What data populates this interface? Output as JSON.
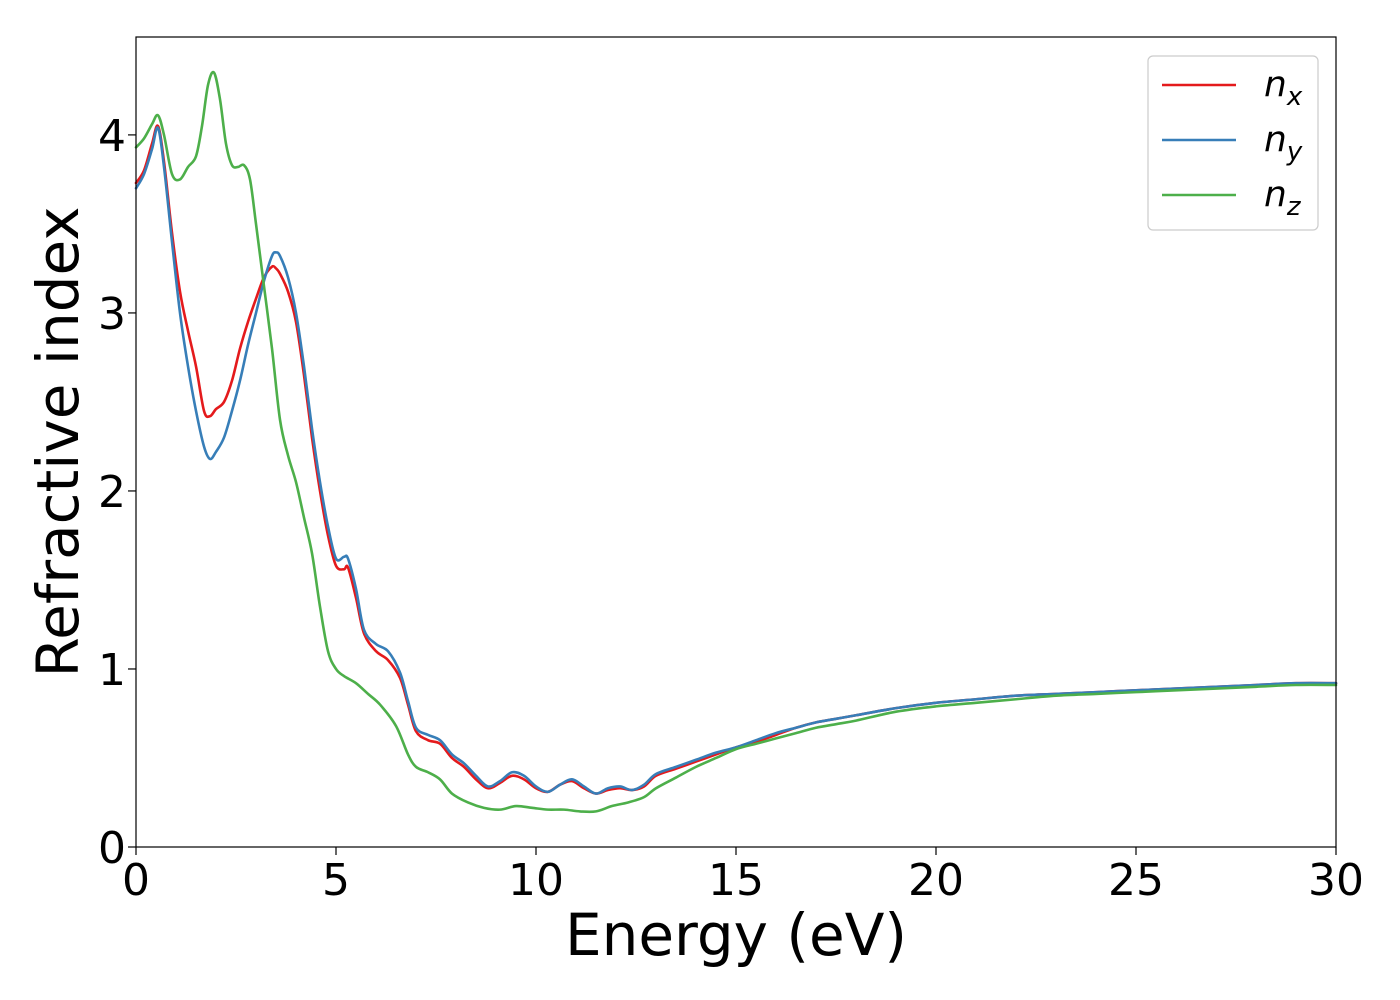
{
  "chart_data": {
    "type": "line",
    "title": "",
    "xlabel": "Energy (eV)",
    "ylabel": "Refractive index",
    "xlim": [
      0,
      30
    ],
    "ylim": [
      0,
      4.55
    ],
    "xticks": [
      0,
      5,
      10,
      15,
      20,
      25,
      30
    ],
    "yticks": [
      0,
      1,
      2,
      3,
      4
    ],
    "xtick_labels": [
      "0",
      "5",
      "10",
      "15",
      "20",
      "25",
      "30"
    ],
    "ytick_labels": [
      "0",
      "1",
      "2",
      "3",
      "4"
    ],
    "grid": false,
    "legend_position": "top-right",
    "series": [
      {
        "name": "n_x",
        "label_main": "n",
        "label_sub": "x",
        "color": "#e41a1c",
        "x": [
          0,
          0.2,
          0.4,
          0.55,
          0.7,
          0.9,
          1.1,
          1.3,
          1.5,
          1.7,
          1.85,
          2.0,
          2.2,
          2.4,
          2.6,
          2.8,
          3.0,
          3.2,
          3.4,
          3.5,
          3.6,
          3.8,
          4.0,
          4.2,
          4.4,
          4.6,
          4.8,
          5.0,
          5.2,
          5.3,
          5.5,
          5.7,
          6.0,
          6.3,
          6.6,
          6.8,
          7.0,
          7.3,
          7.6,
          7.9,
          8.2,
          8.5,
          8.8,
          9.1,
          9.4,
          9.7,
          10.0,
          10.3,
          10.6,
          10.9,
          11.2,
          11.5,
          11.8,
          12.1,
          12.4,
          12.7,
          13.0,
          13.5,
          14.0,
          14.5,
          15.0,
          15.5,
          16.0,
          16.5,
          17.0,
          17.5,
          18.0,
          19.0,
          20.0,
          21.0,
          22.0,
          23.0,
          24.0,
          25.0,
          26.0,
          27.0,
          28.0,
          29.0,
          30.0
        ],
        "y": [
          3.73,
          3.8,
          3.95,
          4.05,
          3.85,
          3.45,
          3.12,
          2.9,
          2.7,
          2.45,
          2.42,
          2.46,
          2.5,
          2.62,
          2.8,
          2.95,
          3.08,
          3.2,
          3.26,
          3.25,
          3.22,
          3.12,
          2.95,
          2.65,
          2.3,
          2.0,
          1.75,
          1.58,
          1.56,
          1.57,
          1.4,
          1.2,
          1.1,
          1.05,
          0.95,
          0.8,
          0.65,
          0.6,
          0.58,
          0.5,
          0.45,
          0.38,
          0.33,
          0.36,
          0.4,
          0.38,
          0.33,
          0.31,
          0.35,
          0.37,
          0.33,
          0.3,
          0.32,
          0.33,
          0.32,
          0.34,
          0.4,
          0.44,
          0.48,
          0.52,
          0.56,
          0.59,
          0.63,
          0.67,
          0.7,
          0.72,
          0.74,
          0.78,
          0.81,
          0.83,
          0.85,
          0.86,
          0.87,
          0.88,
          0.89,
          0.9,
          0.91,
          0.92,
          0.92
        ]
      },
      {
        "name": "n_y",
        "label_main": "n",
        "label_sub": "y",
        "color": "#377eb8",
        "x": [
          0,
          0.2,
          0.4,
          0.55,
          0.7,
          0.9,
          1.1,
          1.3,
          1.5,
          1.7,
          1.85,
          2.0,
          2.2,
          2.4,
          2.6,
          2.8,
          3.0,
          3.2,
          3.4,
          3.5,
          3.6,
          3.8,
          4.0,
          4.2,
          4.4,
          4.6,
          4.8,
          5.0,
          5.2,
          5.3,
          5.5,
          5.7,
          6.0,
          6.3,
          6.6,
          6.8,
          7.0,
          7.3,
          7.6,
          7.9,
          8.2,
          8.5,
          8.8,
          9.1,
          9.4,
          9.7,
          10.0,
          10.3,
          10.6,
          10.9,
          11.2,
          11.5,
          11.8,
          12.1,
          12.4,
          12.7,
          13.0,
          13.5,
          14.0,
          14.5,
          15.0,
          15.5,
          16.0,
          16.5,
          17.0,
          17.5,
          18.0,
          19.0,
          20.0,
          21.0,
          22.0,
          23.0,
          24.0,
          25.0,
          26.0,
          27.0,
          28.0,
          29.0,
          30.0
        ],
        "y": [
          3.7,
          3.78,
          3.92,
          4.04,
          3.82,
          3.4,
          3.0,
          2.7,
          2.45,
          2.25,
          2.18,
          2.22,
          2.3,
          2.45,
          2.62,
          2.82,
          3.0,
          3.18,
          3.32,
          3.34,
          3.32,
          3.2,
          3.0,
          2.7,
          2.35,
          2.05,
          1.8,
          1.62,
          1.63,
          1.62,
          1.45,
          1.22,
          1.14,
          1.1,
          0.98,
          0.82,
          0.67,
          0.63,
          0.6,
          0.52,
          0.47,
          0.4,
          0.34,
          0.37,
          0.42,
          0.4,
          0.34,
          0.31,
          0.35,
          0.38,
          0.34,
          0.3,
          0.33,
          0.34,
          0.32,
          0.35,
          0.41,
          0.45,
          0.49,
          0.53,
          0.56,
          0.6,
          0.64,
          0.67,
          0.7,
          0.72,
          0.74,
          0.78,
          0.81,
          0.83,
          0.85,
          0.86,
          0.87,
          0.88,
          0.89,
          0.9,
          0.91,
          0.92,
          0.92
        ]
      },
      {
        "name": "n_z",
        "label_main": "n",
        "label_sub": "z",
        "color": "#4daf4a",
        "x": [
          0,
          0.2,
          0.4,
          0.55,
          0.7,
          0.9,
          1.1,
          1.3,
          1.5,
          1.65,
          1.8,
          1.95,
          2.1,
          2.25,
          2.4,
          2.55,
          2.7,
          2.85,
          3.0,
          3.2,
          3.4,
          3.6,
          3.8,
          4.0,
          4.2,
          4.4,
          4.6,
          4.8,
          5.0,
          5.2,
          5.5,
          5.8,
          6.1,
          6.5,
          6.8,
          7.0,
          7.3,
          7.6,
          7.9,
          8.3,
          8.7,
          9.1,
          9.5,
          9.9,
          10.3,
          10.7,
          11.1,
          11.5,
          11.9,
          12.3,
          12.7,
          13.0,
          13.5,
          14.0,
          14.5,
          15.0,
          15.5,
          16.0,
          16.5,
          17.0,
          17.5,
          18.0,
          19.0,
          20.0,
          21.0,
          22.0,
          23.0,
          24.0,
          25.0,
          26.0,
          27.0,
          28.0,
          29.0,
          30.0
        ],
        "y": [
          3.93,
          3.98,
          4.06,
          4.11,
          4.0,
          3.78,
          3.75,
          3.82,
          3.88,
          4.05,
          4.28,
          4.35,
          4.2,
          3.95,
          3.83,
          3.82,
          3.83,
          3.75,
          3.5,
          3.15,
          2.8,
          2.4,
          2.2,
          2.05,
          1.85,
          1.65,
          1.35,
          1.1,
          1.0,
          0.96,
          0.92,
          0.86,
          0.8,
          0.68,
          0.52,
          0.45,
          0.42,
          0.38,
          0.3,
          0.25,
          0.22,
          0.21,
          0.23,
          0.22,
          0.21,
          0.21,
          0.2,
          0.2,
          0.23,
          0.25,
          0.28,
          0.33,
          0.39,
          0.45,
          0.5,
          0.55,
          0.58,
          0.61,
          0.64,
          0.67,
          0.69,
          0.71,
          0.76,
          0.79,
          0.81,
          0.83,
          0.85,
          0.86,
          0.87,
          0.88,
          0.89,
          0.9,
          0.91,
          0.91
        ]
      }
    ]
  }
}
